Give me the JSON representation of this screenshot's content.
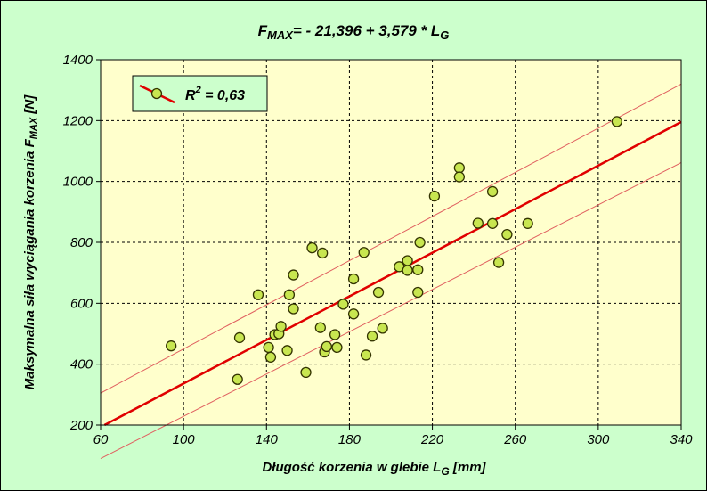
{
  "chart_data": {
    "type": "scatter",
    "title": {
      "lhs": "F",
      "lhs_sub": "MAX",
      "rhs": "= - 21,396 + 3,579 * L",
      "rhs_sub": "G"
    },
    "xlabel": {
      "main": "Długość korzenia w glebie L",
      "sub": "G",
      "tail": " [mm]"
    },
    "ylabel": {
      "main": "Maksymalna siła wyciągania korzenia F",
      "sub": "MAX",
      "tail": " [N]"
    },
    "xlim": [
      60,
      340
    ],
    "ylim": [
      200,
      1400
    ],
    "xticks": [
      "60",
      "100",
      "140",
      "180",
      "220",
      "260",
      "300",
      "340"
    ],
    "yticks": [
      "200",
      "400",
      "600",
      "800",
      "1000",
      "1200",
      "1400"
    ],
    "grid": true,
    "legend": {
      "position": "top-left",
      "label_main": "R",
      "label_sup": "2",
      "label_tail": " = 0,63"
    },
    "fit_line": {
      "intercept": -21.396,
      "slope": 3.579,
      "color": "#e00000"
    },
    "confidence_band": {
      "upper": [
        [
          60,
          305
        ],
        [
          340,
          1320
        ]
      ],
      "lower": [
        [
          60,
          90
        ],
        [
          340,
          1062
        ]
      ],
      "color": "#e06060"
    },
    "marker": {
      "fill": "#c8e650",
      "stroke": "#333300"
    },
    "series": [
      {
        "points": [
          [
            94,
            460
          ],
          [
            126,
            350
          ],
          [
            127,
            487
          ],
          [
            141,
            455
          ],
          [
            142,
            423
          ],
          [
            144,
            497
          ],
          [
            146,
            500
          ],
          [
            147,
            524
          ],
          [
            136,
            628
          ],
          [
            150,
            445
          ],
          [
            151,
            628
          ],
          [
            153,
            582
          ],
          [
            153,
            693
          ],
          [
            159,
            373
          ],
          [
            162,
            782
          ],
          [
            166,
            520
          ],
          [
            167,
            765
          ],
          [
            168,
            440
          ],
          [
            169,
            458
          ],
          [
            173,
            497
          ],
          [
            174,
            455
          ],
          [
            177,
            597
          ],
          [
            182,
            680
          ],
          [
            182,
            565
          ],
          [
            187,
            767
          ],
          [
            188,
            430
          ],
          [
            191,
            492
          ],
          [
            194,
            636
          ],
          [
            196,
            518
          ],
          [
            204,
            720
          ],
          [
            208,
            708
          ],
          [
            208,
            740
          ],
          [
            213,
            710
          ],
          [
            213,
            636
          ],
          [
            214,
            800
          ],
          [
            221,
            952
          ],
          [
            233,
            1045
          ],
          [
            233,
            1015
          ],
          [
            242,
            863
          ],
          [
            249,
            967
          ],
          [
            249,
            862
          ],
          [
            252,
            734
          ],
          [
            256,
            826
          ],
          [
            266,
            862
          ],
          [
            309,
            1197
          ]
        ]
      }
    ]
  }
}
